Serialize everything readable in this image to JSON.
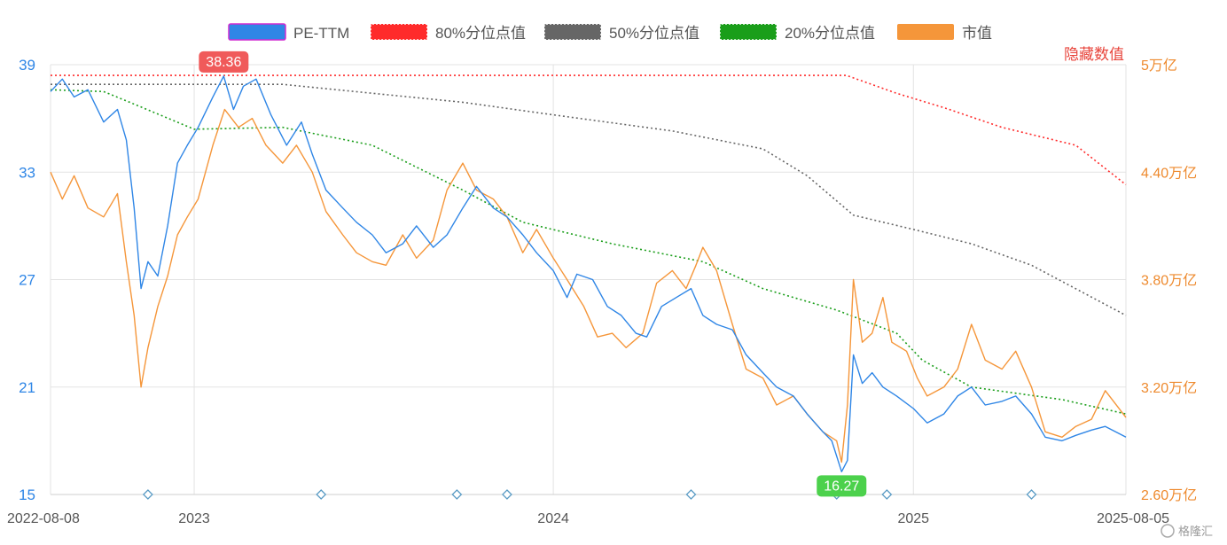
{
  "chart_data": {
    "type": "line",
    "legend_position": "top",
    "grid": true,
    "hidden_label": "隐藏数值",
    "watermark": "格隆汇",
    "colors": {
      "pe": "#2f86e6",
      "p80": "#ff2b2b",
      "p50": "#666666",
      "p20": "#1a9e1a",
      "cap": "#f5963a",
      "marker": "#5a9bc4",
      "max_badge": "#f05a5a",
      "min_badge": "#4cd14c"
    },
    "x_axis": {
      "start": "2022-08-08",
      "end": "2025-08-05",
      "ticks": [
        {
          "date": "2022-08-08",
          "label": "2022-08-08"
        },
        {
          "date": "2023-01-01",
          "label": "2023"
        },
        {
          "date": "2024-01-01",
          "label": "2024"
        },
        {
          "date": "2025-01-01",
          "label": "2025"
        },
        {
          "date": "2025-08-05",
          "label": "2025-08-05"
        }
      ]
    },
    "y_left": {
      "min": 15,
      "max": 39,
      "ticks": [
        {
          "v": 15,
          "label": "15"
        },
        {
          "v": 21,
          "label": "21"
        },
        {
          "v": 27,
          "label": "27"
        },
        {
          "v": 33,
          "label": "33"
        },
        {
          "v": 39,
          "label": "39"
        }
      ]
    },
    "y_right": {
      "min": 2.6,
      "max": 5.0,
      "ticks": [
        {
          "v": 2.6,
          "label": "2.60万亿"
        },
        {
          "v": 3.2,
          "label": "3.20万亿"
        },
        {
          "v": 3.8,
          "label": "3.80万亿"
        },
        {
          "v": 4.4,
          "label": "4.40万亿"
        },
        {
          "v": 5.0,
          "label": "5万亿"
        }
      ]
    },
    "series": [
      {
        "name": "PE-TTM",
        "key": "pe",
        "axis": "left",
        "style": "solid",
        "points": [
          [
            "2022-08-08",
            37.5
          ],
          [
            "2022-08-20",
            38.2
          ],
          [
            "2022-09-01",
            37.2
          ],
          [
            "2022-09-15",
            37.6
          ],
          [
            "2022-10-01",
            35.8
          ],
          [
            "2022-10-15",
            36.5
          ],
          [
            "2022-10-24",
            34.8
          ],
          [
            "2022-11-01",
            31.0
          ],
          [
            "2022-11-08",
            26.5
          ],
          [
            "2022-11-15",
            28.0
          ],
          [
            "2022-11-25",
            27.2
          ],
          [
            "2022-12-05",
            30.0
          ],
          [
            "2022-12-15",
            33.5
          ],
          [
            "2022-12-25",
            34.5
          ],
          [
            "2023-01-05",
            35.5
          ],
          [
            "2023-01-20",
            37.2
          ],
          [
            "2023-01-31",
            38.36
          ],
          [
            "2023-02-10",
            36.5
          ],
          [
            "2023-02-20",
            37.8
          ],
          [
            "2023-03-05",
            38.2
          ],
          [
            "2023-03-20",
            36.2
          ],
          [
            "2023-04-05",
            34.5
          ],
          [
            "2023-04-20",
            35.8
          ],
          [
            "2023-05-01",
            34.0
          ],
          [
            "2023-05-15",
            32.0
          ],
          [
            "2023-06-01",
            31.0
          ],
          [
            "2023-06-15",
            30.2
          ],
          [
            "2023-07-01",
            29.5
          ],
          [
            "2023-07-15",
            28.5
          ],
          [
            "2023-08-01",
            29.0
          ],
          [
            "2023-08-15",
            30.0
          ],
          [
            "2023-09-01",
            28.8
          ],
          [
            "2023-09-15",
            29.5
          ],
          [
            "2023-10-01",
            31.0
          ],
          [
            "2023-10-15",
            32.2
          ],
          [
            "2023-11-01",
            31.0
          ],
          [
            "2023-11-15",
            30.5
          ],
          [
            "2023-12-01",
            29.5
          ],
          [
            "2023-12-15",
            28.5
          ],
          [
            "2024-01-01",
            27.5
          ],
          [
            "2024-01-15",
            26.0
          ],
          [
            "2024-01-25",
            27.3
          ],
          [
            "2024-02-10",
            27.0
          ],
          [
            "2024-02-25",
            25.5
          ],
          [
            "2024-03-10",
            25.0
          ],
          [
            "2024-03-25",
            24.0
          ],
          [
            "2024-04-05",
            23.8
          ],
          [
            "2024-04-20",
            25.5
          ],
          [
            "2024-05-05",
            26.0
          ],
          [
            "2024-05-20",
            26.5
          ],
          [
            "2024-06-01",
            25.0
          ],
          [
            "2024-06-15",
            24.5
          ],
          [
            "2024-07-01",
            24.2
          ],
          [
            "2024-07-15",
            22.8
          ],
          [
            "2024-08-01",
            21.8
          ],
          [
            "2024-08-15",
            21.0
          ],
          [
            "2024-09-01",
            20.5
          ],
          [
            "2024-09-15",
            19.5
          ],
          [
            "2024-10-01",
            18.5
          ],
          [
            "2024-10-10",
            18.0
          ],
          [
            "2024-10-20",
            16.27
          ],
          [
            "2024-10-26",
            16.9
          ],
          [
            "2024-11-01",
            22.8
          ],
          [
            "2024-11-10",
            21.2
          ],
          [
            "2024-11-20",
            21.8
          ],
          [
            "2024-12-01",
            21.0
          ],
          [
            "2024-12-15",
            20.5
          ],
          [
            "2025-01-01",
            19.8
          ],
          [
            "2025-01-15",
            19.0
          ],
          [
            "2025-02-01",
            19.5
          ],
          [
            "2025-02-15",
            20.5
          ],
          [
            "2025-03-01",
            21.0
          ],
          [
            "2025-03-15",
            20.0
          ],
          [
            "2025-04-01",
            20.2
          ],
          [
            "2025-04-15",
            20.5
          ],
          [
            "2025-05-01",
            19.5
          ],
          [
            "2025-05-15",
            18.2
          ],
          [
            "2025-06-01",
            18.0
          ],
          [
            "2025-06-15",
            18.3
          ],
          [
            "2025-07-01",
            18.6
          ],
          [
            "2025-07-15",
            18.8
          ],
          [
            "2025-08-05",
            18.2
          ]
        ]
      },
      {
        "name": "80%分位点值",
        "key": "p80",
        "axis": "left",
        "style": "dotted",
        "points": [
          [
            "2022-08-08",
            38.4
          ],
          [
            "2024-10-25",
            38.4
          ],
          [
            "2024-12-15",
            37.4
          ],
          [
            "2025-02-01",
            36.6
          ],
          [
            "2025-04-01",
            35.5
          ],
          [
            "2025-06-15",
            34.5
          ],
          [
            "2025-08-05",
            32.3
          ]
        ]
      },
      {
        "name": "50%分位点值",
        "key": "p50",
        "axis": "left",
        "style": "dotted",
        "points": [
          [
            "2022-08-08",
            37.9
          ],
          [
            "2023-04-01",
            37.9
          ],
          [
            "2023-10-01",
            36.9
          ],
          [
            "2024-01-01",
            36.2
          ],
          [
            "2024-05-01",
            35.3
          ],
          [
            "2024-08-01",
            34.3
          ],
          [
            "2024-09-15",
            32.8
          ],
          [
            "2024-11-01",
            30.6
          ],
          [
            "2025-01-01",
            29.8
          ],
          [
            "2025-03-01",
            29.0
          ],
          [
            "2025-05-01",
            27.8
          ],
          [
            "2025-08-05",
            25.0
          ]
        ]
      },
      {
        "name": "20%分位点值",
        "key": "p20",
        "axis": "left",
        "style": "dotted",
        "points": [
          [
            "2022-08-08",
            37.6
          ],
          [
            "2022-10-01",
            37.5
          ],
          [
            "2022-11-01",
            36.8
          ],
          [
            "2023-01-01",
            35.4
          ],
          [
            "2023-04-01",
            35.5
          ],
          [
            "2023-07-01",
            34.5
          ],
          [
            "2023-10-01",
            32.0
          ],
          [
            "2023-12-01",
            30.2
          ],
          [
            "2024-03-01",
            29.0
          ],
          [
            "2024-06-01",
            28.0
          ],
          [
            "2024-08-01",
            26.5
          ],
          [
            "2024-10-15",
            25.3
          ],
          [
            "2024-12-15",
            24.0
          ],
          [
            "2025-01-10",
            22.5
          ],
          [
            "2025-03-01",
            21.0
          ],
          [
            "2025-06-01",
            20.3
          ],
          [
            "2025-08-05",
            19.5
          ]
        ]
      },
      {
        "name": "市值",
        "key": "cap",
        "axis": "right",
        "style": "solid",
        "points": [
          [
            "2022-08-08",
            4.4
          ],
          [
            "2022-08-20",
            4.25
          ],
          [
            "2022-09-01",
            4.38
          ],
          [
            "2022-09-15",
            4.2
          ],
          [
            "2022-10-01",
            4.15
          ],
          [
            "2022-10-15",
            4.28
          ],
          [
            "2022-10-24",
            3.9
          ],
          [
            "2022-11-01",
            3.6
          ],
          [
            "2022-11-08",
            3.2
          ],
          [
            "2022-11-15",
            3.42
          ],
          [
            "2022-11-25",
            3.65
          ],
          [
            "2022-12-05",
            3.82
          ],
          [
            "2022-12-15",
            4.05
          ],
          [
            "2022-12-25",
            4.15
          ],
          [
            "2023-01-05",
            4.25
          ],
          [
            "2023-01-20",
            4.55
          ],
          [
            "2023-02-01",
            4.75
          ],
          [
            "2023-02-15",
            4.65
          ],
          [
            "2023-03-01",
            4.7
          ],
          [
            "2023-03-15",
            4.55
          ],
          [
            "2023-04-01",
            4.45
          ],
          [
            "2023-04-15",
            4.55
          ],
          [
            "2023-05-01",
            4.4
          ],
          [
            "2023-05-15",
            4.18
          ],
          [
            "2023-06-01",
            4.05
          ],
          [
            "2023-06-15",
            3.95
          ],
          [
            "2023-07-01",
            3.9
          ],
          [
            "2023-07-15",
            3.88
          ],
          [
            "2023-08-01",
            4.05
          ],
          [
            "2023-08-15",
            3.92
          ],
          [
            "2023-09-01",
            4.02
          ],
          [
            "2023-09-15",
            4.3
          ],
          [
            "2023-10-01",
            4.45
          ],
          [
            "2023-10-15",
            4.3
          ],
          [
            "2023-11-01",
            4.25
          ],
          [
            "2023-11-15",
            4.15
          ],
          [
            "2023-12-01",
            3.95
          ],
          [
            "2023-12-15",
            4.08
          ],
          [
            "2024-01-01",
            3.92
          ],
          [
            "2024-01-15",
            3.8
          ],
          [
            "2024-02-01",
            3.65
          ],
          [
            "2024-02-15",
            3.48
          ],
          [
            "2024-03-01",
            3.5
          ],
          [
            "2024-03-15",
            3.42
          ],
          [
            "2024-04-01",
            3.5
          ],
          [
            "2024-04-15",
            3.78
          ],
          [
            "2024-05-01",
            3.85
          ],
          [
            "2024-05-15",
            3.75
          ],
          [
            "2024-05-25",
            3.88
          ],
          [
            "2024-06-01",
            3.98
          ],
          [
            "2024-06-15",
            3.85
          ],
          [
            "2024-07-01",
            3.55
          ],
          [
            "2024-07-15",
            3.3
          ],
          [
            "2024-08-01",
            3.25
          ],
          [
            "2024-08-15",
            3.1
          ],
          [
            "2024-09-01",
            3.15
          ],
          [
            "2024-09-15",
            3.05
          ],
          [
            "2024-10-01",
            2.95
          ],
          [
            "2024-10-15",
            2.9
          ],
          [
            "2024-10-20",
            2.78
          ],
          [
            "2024-10-26",
            3.1
          ],
          [
            "2024-11-01",
            3.8
          ],
          [
            "2024-11-10",
            3.45
          ],
          [
            "2024-11-20",
            3.5
          ],
          [
            "2024-12-01",
            3.7
          ],
          [
            "2024-12-10",
            3.45
          ],
          [
            "2024-12-25",
            3.4
          ],
          [
            "2025-01-05",
            3.25
          ],
          [
            "2025-01-15",
            3.15
          ],
          [
            "2025-02-01",
            3.2
          ],
          [
            "2025-02-15",
            3.3
          ],
          [
            "2025-03-01",
            3.55
          ],
          [
            "2025-03-15",
            3.35
          ],
          [
            "2025-04-01",
            3.3
          ],
          [
            "2025-04-15",
            3.4
          ],
          [
            "2025-05-01",
            3.2
          ],
          [
            "2025-05-15",
            2.95
          ],
          [
            "2025-06-01",
            2.92
          ],
          [
            "2025-06-15",
            2.98
          ],
          [
            "2025-07-01",
            3.02
          ],
          [
            "2025-07-15",
            3.18
          ],
          [
            "2025-08-05",
            3.03
          ]
        ]
      }
    ],
    "annotations": [
      {
        "type": "max",
        "text": "38.36",
        "date": "2023-01-31",
        "value": 38.36
      },
      {
        "type": "min",
        "text": "16.27",
        "date": "2024-10-20",
        "value": 16.27
      }
    ],
    "event_markers": [
      "2022-11-15",
      "2023-05-10",
      "2023-09-25",
      "2023-11-15",
      "2024-05-20",
      "2024-10-15",
      "2024-12-05",
      "2025-05-01"
    ]
  }
}
